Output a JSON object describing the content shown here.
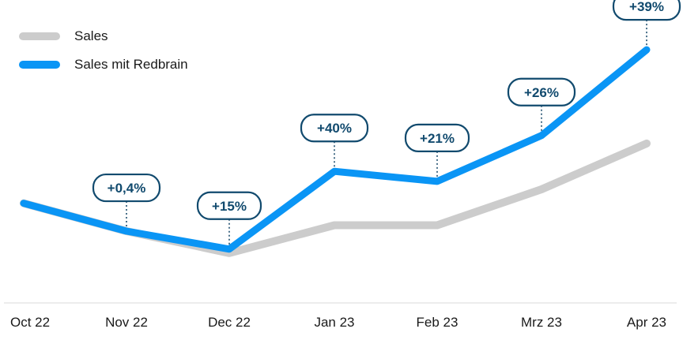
{
  "chart_data": {
    "type": "line",
    "categories": [
      "Oct 22",
      "Nov 22",
      "Dec 22",
      "Jan 23",
      "Feb 23",
      "Mrz 23",
      "Apr 23"
    ],
    "series": [
      {
        "name": "Sales",
        "color": "#cccccc",
        "values": [
          100,
          86,
          75,
          89,
          89,
          107,
          130
        ]
      },
      {
        "name": "Sales mit Redbrain",
        "color": "#0a95f5",
        "values": [
          100,
          86,
          77,
          116,
          111,
          134,
          177
        ]
      }
    ],
    "annotations": [
      "",
      "+0,4%",
      "+15%",
      "+40%",
      "+21%",
      "+26%",
      "+39%"
    ],
    "ylim": [
      50,
      200
    ],
    "title": "",
    "xlabel": "",
    "ylabel": "",
    "legend_position": "top-left",
    "grid": false
  }
}
